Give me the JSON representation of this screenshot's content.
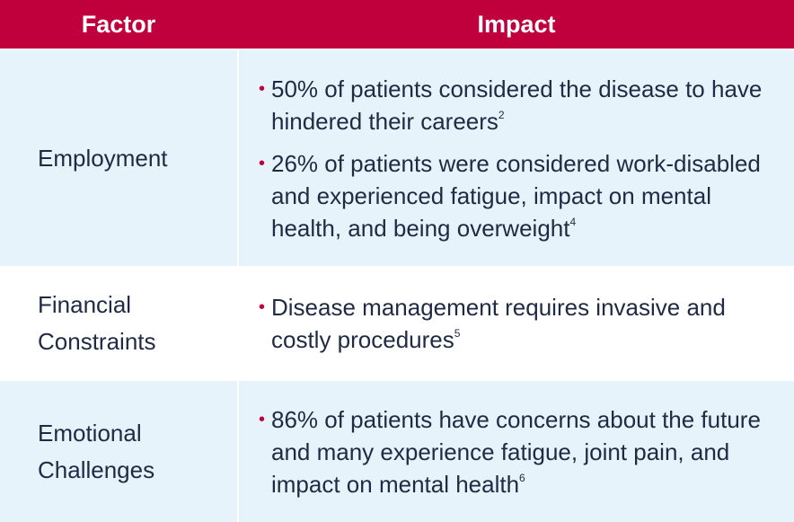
{
  "header": {
    "factor": "Factor",
    "impact": "Impact"
  },
  "colors": {
    "header_bg": "#c0003c",
    "shaded_row": "#e6f3fa",
    "text": "#1f2a44",
    "bullet": "#c0003c"
  },
  "rows": [
    {
      "factor": "Employment",
      "bullets": [
        {
          "text": "50% of patients considered the disease to have hindered their careers",
          "ref": "2"
        },
        {
          "text": "26% of patients were considered work-disabled and experienced fatigue, impact on mental health, and being overweight",
          "ref": "4"
        }
      ]
    },
    {
      "factor": "Financial\nConstraints",
      "bullets": [
        {
          "text": "Disease management requires invasive and costly procedures",
          "ref": "5"
        }
      ]
    },
    {
      "factor": "Emotional\nChallenges",
      "bullets": [
        {
          "text": "86% of patients have concerns about the future and many experience fatigue, joint pain, and impact on mental health",
          "ref": "6"
        }
      ]
    }
  ]
}
